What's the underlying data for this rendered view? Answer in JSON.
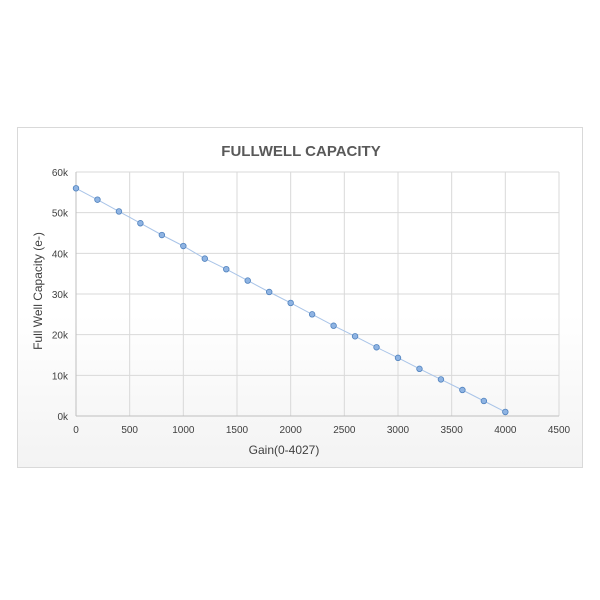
{
  "chart_data": {
    "type": "scatter",
    "title": "FULLWELL CAPACITY",
    "xlabel": "Gain(0-4027)",
    "ylabel": "Full Well Capacity (e-)",
    "xlim": [
      0,
      4500
    ],
    "ylim": [
      0,
      60000
    ],
    "xticks": [
      0,
      500,
      1000,
      1500,
      2000,
      2500,
      3000,
      3500,
      4000,
      4500
    ],
    "xtick_labels": [
      "0",
      "500",
      "1000",
      "1500",
      "2000",
      "2500",
      "3000",
      "3500",
      "4000",
      "4500"
    ],
    "yticks": [
      0,
      10000,
      20000,
      30000,
      40000,
      50000,
      60000
    ],
    "ytick_labels": [
      "0k",
      "10k",
      "20k",
      "30k",
      "40k",
      "50k",
      "60k"
    ],
    "grid": true,
    "legend": false,
    "colors": {
      "marker_fill": "#8fb4e3",
      "marker_stroke": "#4f81bd",
      "line": "#a9c4e8",
      "grid": "#d9d9d9",
      "text": "#404040",
      "title": "#595959"
    },
    "series": [
      {
        "x": [
          0,
          200,
          400,
          600,
          800,
          1000,
          1200,
          1400,
          1600,
          1800,
          2000,
          2200,
          2400,
          2600,
          2800,
          3000,
          3200,
          3400,
          3600,
          3800,
          4000
        ],
        "y": [
          56000,
          53200,
          50300,
          47400,
          44500,
          41800,
          38700,
          36100,
          33300,
          30500,
          27800,
          25000,
          22200,
          19600,
          16900,
          14300,
          11600,
          9000,
          6400,
          3700,
          1000
        ]
      }
    ]
  }
}
